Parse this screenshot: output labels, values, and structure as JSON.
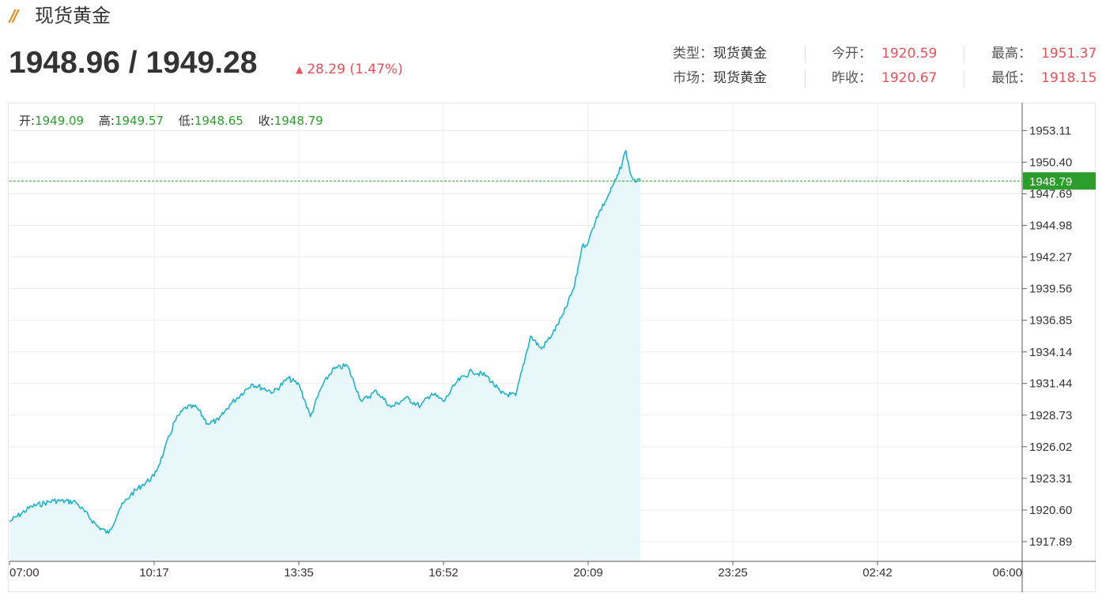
{
  "header": {
    "title": "现货黄金",
    "price": "1948.96 / 1949.28",
    "change": "28.29 (1.47%)",
    "colors": {
      "accent": "#e8891c",
      "up": "#e8505b",
      "green": "#2a9d2a",
      "line": "#1fb3c9",
      "fill": "#e8f8fa"
    }
  },
  "meta": {
    "type_label": "类型：",
    "type_value": "现货黄金",
    "market_label": "市场：",
    "market_value": "现货黄金",
    "open_label": "今开：",
    "open_value": "1920.59",
    "prev_close_label": "昨收：",
    "prev_close_value": "1920.67",
    "high_label": "最高：",
    "high_value": "1951.37",
    "low_label": "最低：",
    "low_value": "1918.15"
  },
  "ohlc": {
    "open_label": "开:",
    "open_value": "1949.09",
    "high_label": "高:",
    "high_value": "1949.57",
    "low_label": "低:",
    "low_value": "1948.65",
    "close_label": "收:",
    "close_value": "1948.79"
  },
  "chart_data": {
    "type": "area",
    "title": "",
    "xlabel": "",
    "ylabel": "",
    "grid": true,
    "ylim": [
      1916.2,
      1955.5
    ],
    "x_ticks": [
      "07:00",
      "10:17",
      "13:35",
      "16:52",
      "20:09",
      "23:25",
      "02:42",
      "06:00"
    ],
    "y_ticks": [
      "1953.11",
      "1950.40",
      "1947.69",
      "1944.98",
      "1942.27",
      "1939.56",
      "1936.85",
      "1934.14",
      "1931.44",
      "1928.73",
      "1926.02",
      "1923.31",
      "1920.60",
      "1917.89"
    ],
    "last_value": "1948.79",
    "series": [
      {
        "x": [
          "07:00",
          "07:30",
          "08:00",
          "08:30",
          "09:00",
          "09:15",
          "09:30",
          "09:45",
          "10:00",
          "10:17",
          "10:30",
          "10:45",
          "11:00",
          "11:15",
          "11:30",
          "11:45",
          "12:00",
          "12:30",
          "13:00",
          "13:20",
          "13:35",
          "13:50",
          "14:05",
          "14:20",
          "14:40",
          "15:00",
          "15:20",
          "15:40",
          "16:00",
          "16:20",
          "16:35",
          "16:52",
          "17:10",
          "17:30",
          "17:50",
          "18:10",
          "18:30",
          "18:50",
          "19:05",
          "19:20",
          "19:35",
          "19:50",
          "20:00",
          "20:09",
          "20:20",
          "20:35",
          "20:50",
          "21:00",
          "21:05",
          "21:10",
          "21:15",
          "21:20"
        ],
        "values": [
          1919.6,
          1920.9,
          1921.4,
          1921.3,
          1919.2,
          1918.6,
          1920.7,
          1921.9,
          1922.7,
          1923.5,
          1925.5,
          1928.2,
          1929.4,
          1929.4,
          1928.0,
          1928.3,
          1929.6,
          1931.4,
          1930.7,
          1931.9,
          1931.3,
          1928.6,
          1931.1,
          1932.6,
          1933.0,
          1929.9,
          1930.8,
          1929.4,
          1930.2,
          1929.5,
          1930.6,
          1929.9,
          1931.6,
          1932.5,
          1932.1,
          1930.6,
          1930.4,
          1935.5,
          1934.4,
          1935.7,
          1937.4,
          1939.8,
          1943.1,
          1943.6,
          1945.7,
          1947.4,
          1949.4,
          1951.4,
          1949.7,
          1948.9,
          1948.8,
          1948.79
        ]
      }
    ]
  }
}
